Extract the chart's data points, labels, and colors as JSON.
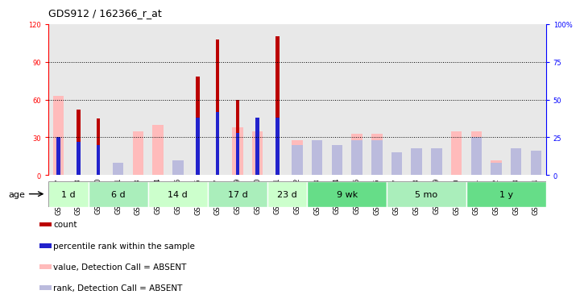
{
  "title": "GDS912 / 162366_r_at",
  "samples": [
    "GSM34307",
    "GSM34308",
    "GSM34310",
    "GSM34311",
    "GSM34313",
    "GSM34314",
    "GSM34315",
    "GSM34316",
    "GSM34317",
    "GSM34319",
    "GSM34320",
    "GSM34321",
    "GSM34322",
    "GSM34323",
    "GSM34324",
    "GSM34325",
    "GSM34326",
    "GSM34327",
    "GSM34328",
    "GSM34329",
    "GSM34330",
    "GSM34331",
    "GSM34332",
    "GSM34333",
    "GSM34334"
  ],
  "count_values": [
    0,
    52,
    45,
    0,
    0,
    0,
    0,
    78,
    108,
    60,
    0,
    110,
    0,
    0,
    0,
    0,
    0,
    0,
    0,
    0,
    0,
    0,
    0,
    0,
    0
  ],
  "rank_values": [
    25,
    22,
    20,
    0,
    0,
    0,
    0,
    38,
    42,
    28,
    38,
    38,
    0,
    0,
    0,
    0,
    0,
    0,
    0,
    0,
    0,
    0,
    0,
    0,
    0
  ],
  "absent_value": [
    63,
    0,
    0,
    5,
    35,
    40,
    8,
    0,
    0,
    38,
    35,
    0,
    28,
    28,
    23,
    33,
    33,
    0,
    20,
    20,
    35,
    35,
    12,
    20,
    18
  ],
  "absent_rank": [
    0,
    0,
    0,
    8,
    0,
    0,
    10,
    0,
    0,
    0,
    0,
    0,
    20,
    23,
    20,
    23,
    23,
    15,
    18,
    18,
    0,
    25,
    8,
    18,
    16
  ],
  "age_groups": [
    {
      "label": "1 d",
      "start": 0,
      "end": 2
    },
    {
      "label": "6 d",
      "start": 2,
      "end": 5
    },
    {
      "label": "14 d",
      "start": 5,
      "end": 8
    },
    {
      "label": "17 d",
      "start": 8,
      "end": 11
    },
    {
      "label": "23 d",
      "start": 11,
      "end": 13
    },
    {
      "label": "9 wk",
      "start": 13,
      "end": 17
    },
    {
      "label": "5 mo",
      "start": 17,
      "end": 21
    },
    {
      "label": "1 y",
      "start": 21,
      "end": 25
    }
  ],
  "ylim_left": [
    0,
    120
  ],
  "ylim_right": [
    0,
    100
  ],
  "yticks_left": [
    0,
    30,
    60,
    90,
    120
  ],
  "yticks_right": [
    0,
    25,
    50,
    75,
    100
  ],
  "ytick_labels_right": [
    "0",
    "25",
    "50",
    "75",
    "100%"
  ],
  "color_count": "#bb0000",
  "color_rank": "#2222cc",
  "color_absent_value": "#ffbbbb",
  "color_absent_rank": "#bbbbdd",
  "color_age_bg_light": "#ccffcc",
  "color_age_bg_mid": "#aaeebb",
  "color_age_bg_dark": "#66dd88",
  "color_sample_bg": "#e8e8e8",
  "title_fontsize": 9,
  "tick_fontsize": 6,
  "age_fontsize": 8,
  "legend_fontsize": 7.5
}
